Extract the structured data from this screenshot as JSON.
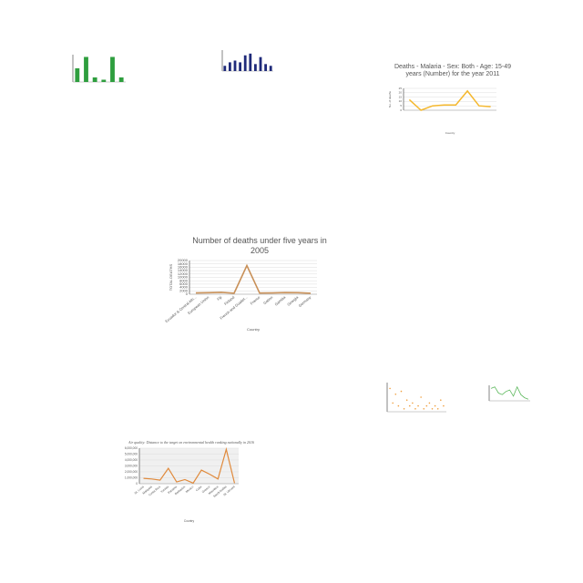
{
  "chart_data": [
    {
      "type": "bar",
      "categories": [
        null,
        null,
        null,
        null,
        null,
        null
      ],
      "values": [
        6,
        11,
        2,
        1,
        11,
        2
      ],
      "color": "#2e9e3e",
      "ylim": [
        0,
        12
      ]
    },
    {
      "type": "bar",
      "categories": [
        null,
        null,
        null,
        null,
        null,
        null,
        null,
        null,
        null,
        null
      ],
      "values": [
        3,
        5,
        6,
        5,
        9,
        10,
        4,
        8,
        4,
        3
      ],
      "color": "#1f2a7a",
      "ylim": [
        0,
        12
      ]
    },
    {
      "type": "line",
      "title": "Deaths - Malaria - Sex: Both - Age: 15-49 years (Number) for the year 2011",
      "xlabel": "Country",
      "ylabel": "No. of deaths",
      "categories": [
        null,
        null,
        null,
        null,
        null,
        null,
        null,
        null
      ],
      "values": [
        12,
        0,
        5,
        6,
        6,
        22,
        5,
        4
      ],
      "color": "#f5b82e",
      "ylim": [
        0,
        25
      ],
      "yticks": [
        0,
        5,
        10,
        15,
        20,
        25
      ],
      "grid": true
    },
    {
      "type": "line",
      "title": "Number of deaths under five years in 2005",
      "xlabel": "Country",
      "ylabel": "TOTAL DEATHS",
      "categories": [
        "Ecuador & Central Afri...",
        "European Union",
        "Fiji",
        "Finland",
        "French and Guadel...",
        "France",
        "Gabon",
        "Gambia",
        "Georgia",
        "Germany"
      ],
      "values": [
        800,
        900,
        1100,
        600,
        17000,
        700,
        800,
        1000,
        900,
        600
      ],
      "color": "#c89058",
      "ylim": [
        0,
        20000
      ],
      "yticks": [
        0,
        2000,
        4000,
        6000,
        8000,
        10000,
        12000,
        14000,
        16000,
        18000,
        20000
      ],
      "grid": true
    },
    {
      "type": "scatter",
      "x": [
        1,
        2,
        3,
        4,
        5,
        6,
        7,
        8,
        9,
        10,
        11,
        12,
        13,
        14,
        15,
        16,
        17,
        18,
        19,
        20
      ],
      "values": [
        8,
        3,
        6,
        2,
        7,
        1,
        4,
        2,
        3,
        1,
        2,
        5,
        1,
        2,
        3,
        1,
        2,
        1,
        4,
        2
      ],
      "color": "#f0a040",
      "xlim": [
        0,
        21
      ],
      "ylim": [
        0,
        10
      ],
      "grid": true
    },
    {
      "type": "line",
      "categories": [
        null,
        null,
        null,
        null,
        null,
        null,
        null,
        null,
        null,
        null,
        null
      ],
      "values": [
        8,
        9,
        5,
        4,
        6,
        7,
        3,
        9,
        4,
        2,
        1
      ],
      "color": "#5cb85c",
      "ylim": [
        0,
        10
      ]
    },
    {
      "type": "line",
      "title": "Air quality: Distance to the target on environmental health ranking nationally in 2016",
      "xlabel": "Country",
      "categories": [
        "St. Lucia",
        "Malaysia",
        "Costa Rica",
        "Tunisia",
        "Panama",
        "Barbados",
        "Mexico",
        "Cuba",
        "Greece",
        "Mauritius",
        "Saudi Arabia",
        "St. Vincent"
      ],
      "values": [
        900000,
        800000,
        600000,
        2600000,
        300000,
        700000,
        100000,
        2300000,
        1600000,
        800000,
        5800000,
        100000
      ],
      "color": "#e08a3c",
      "ylim": [
        0,
        6000000
      ],
      "yticks": [
        0,
        {
          "value": 1000000,
          "label": "1,000,000"
        },
        {
          "value": 2000000,
          "label": "2,000,000"
        },
        {
          "value": 3000000,
          "label": "3,000,000"
        },
        {
          "value": 4000000,
          "label": "4,000,000"
        },
        {
          "value": 5000000,
          "label": "5,000,000"
        },
        {
          "value": 6000000,
          "label": "6,000,000"
        }
      ],
      "grid": true,
      "bg": "#f0f0f0"
    }
  ]
}
